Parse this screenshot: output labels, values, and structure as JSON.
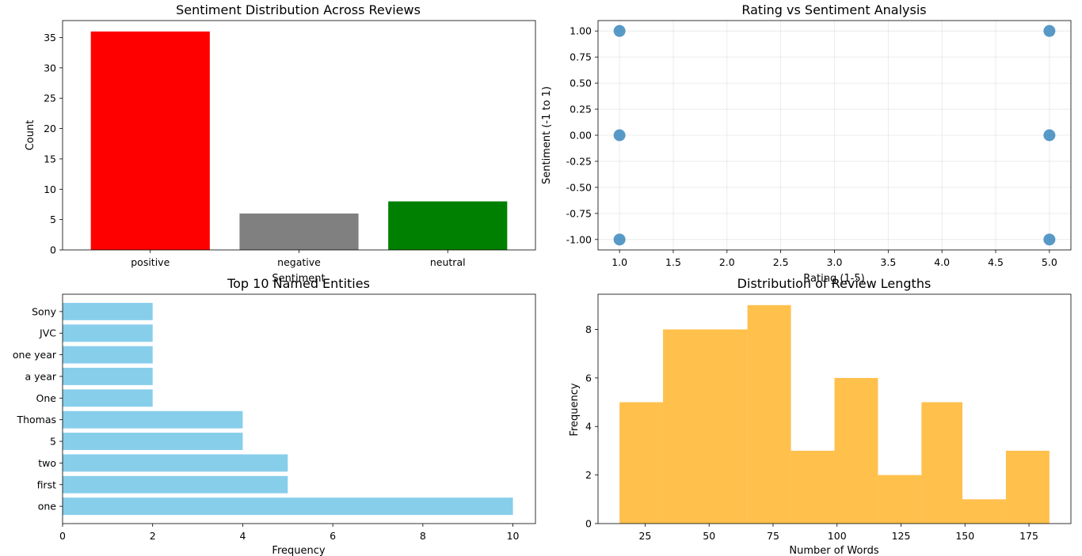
{
  "chart_data": [
    {
      "type": "bar",
      "title": "Sentiment Distribution Across Reviews",
      "xlabel": "Sentiment",
      "ylabel": "Count",
      "categories": [
        "positive",
        "negative",
        "neutral"
      ],
      "values": [
        36,
        6,
        8
      ],
      "colors": [
        "#ff0000",
        "#808080",
        "#008000"
      ],
      "ylim": [
        0,
        37.8
      ],
      "yticks": [
        "0",
        "5",
        "10",
        "15",
        "20",
        "25",
        "30",
        "35"
      ],
      "grid": false
    },
    {
      "type": "scatter",
      "title": "Rating vs Sentiment Analysis",
      "xlabel": "Rating (1-5)",
      "ylabel": "Sentiment (-1 to 1)",
      "points": [
        {
          "x": 1,
          "y": 1
        },
        {
          "x": 1,
          "y": 0
        },
        {
          "x": 1,
          "y": -1
        },
        {
          "x": 5,
          "y": 1
        },
        {
          "x": 5,
          "y": 0
        },
        {
          "x": 5,
          "y": -1
        }
      ],
      "color": "#1f77b4",
      "xlim": [
        0.8,
        5.2
      ],
      "ylim": [
        -1.1,
        1.1
      ],
      "xticks": [
        "1.0",
        "1.5",
        "2.0",
        "2.5",
        "3.0",
        "3.5",
        "4.0",
        "4.5",
        "5.0"
      ],
      "yticks": [
        "-1.00",
        "-0.75",
        "-0.50",
        "-0.25",
        "0.00",
        "0.25",
        "0.50",
        "0.75",
        "1.00"
      ],
      "grid": true
    },
    {
      "type": "bar",
      "orientation": "horizontal",
      "title": "Top 10 Named Entities",
      "xlabel": "Frequency",
      "ylabel": "",
      "categories": [
        "one",
        "first",
        "two",
        "5",
        "Thomas",
        "One",
        "a year",
        "one year",
        "JVC",
        "Sony"
      ],
      "values": [
        10,
        5,
        5,
        4,
        4,
        2,
        2,
        2,
        2,
        2
      ],
      "color": "#87ceeb",
      "xlim": [
        0,
        10.5
      ],
      "xticks": [
        "0",
        "2",
        "4",
        "6",
        "8",
        "10"
      ],
      "grid": false
    },
    {
      "type": "histogram",
      "title": "Distribution of Review Lengths",
      "xlabel": "Number of Words",
      "ylabel": "Frequency",
      "bins": [
        {
          "x0": 15,
          "x1": 32,
          "count": 5
        },
        {
          "x0": 32,
          "x1": 65,
          "count": 8
        },
        {
          "x0": 65,
          "x1": 82,
          "count": 9
        },
        {
          "x0": 82,
          "x1": 99,
          "count": 3
        },
        {
          "x0": 99,
          "x1": 116,
          "count": 6
        },
        {
          "x0": 116,
          "x1": 133,
          "count": 2
        },
        {
          "x0": 133,
          "x1": 149,
          "count": 5
        },
        {
          "x0": 149,
          "x1": 166,
          "count": 1
        },
        {
          "x0": 166,
          "x1": 183,
          "count": 3
        }
      ],
      "color": "#ffa500",
      "opacity": 0.7,
      "xlim": [
        6.6,
        191.4
      ],
      "ylim": [
        0,
        9.45
      ],
      "xticks": [
        "25",
        "50",
        "75",
        "100",
        "125",
        "150",
        "175"
      ],
      "yticks": [
        "0",
        "2",
        "4",
        "6",
        "8"
      ],
      "grid": false
    }
  ]
}
